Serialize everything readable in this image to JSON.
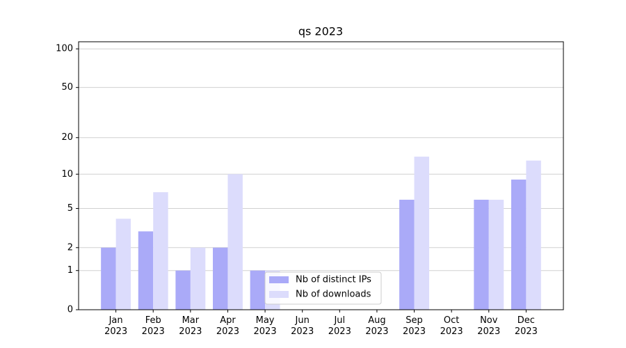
{
  "chart_data": {
    "type": "bar",
    "title": "qs 2023",
    "categories": [
      "Jan\n2023",
      "Feb\n2023",
      "Mar\n2023",
      "Apr\n2023",
      "May\n2023",
      "Jun\n2023",
      "Jul\n2023",
      "Aug\n2023",
      "Sep\n2023",
      "Oct\n2023",
      "Nov\n2023",
      "Dec\n2023"
    ],
    "series": [
      {
        "name": "Nb of distinct IPs",
        "color": "#aaaaf8",
        "values": [
          2,
          3,
          1,
          2,
          1,
          0,
          0,
          0,
          6,
          0,
          6,
          9
        ]
      },
      {
        "name": "Nb of downloads",
        "color": "#dcdcfc",
        "values": [
          4,
          7,
          2,
          10,
          1,
          0,
          0,
          0,
          14,
          0,
          6,
          13
        ]
      }
    ],
    "yscale": "log1p",
    "ylim": [
      0,
      113.5
    ],
    "yticks": [
      0,
      1,
      2,
      5,
      10,
      20,
      50,
      100
    ],
    "grid": true,
    "legend": "lower center"
  }
}
